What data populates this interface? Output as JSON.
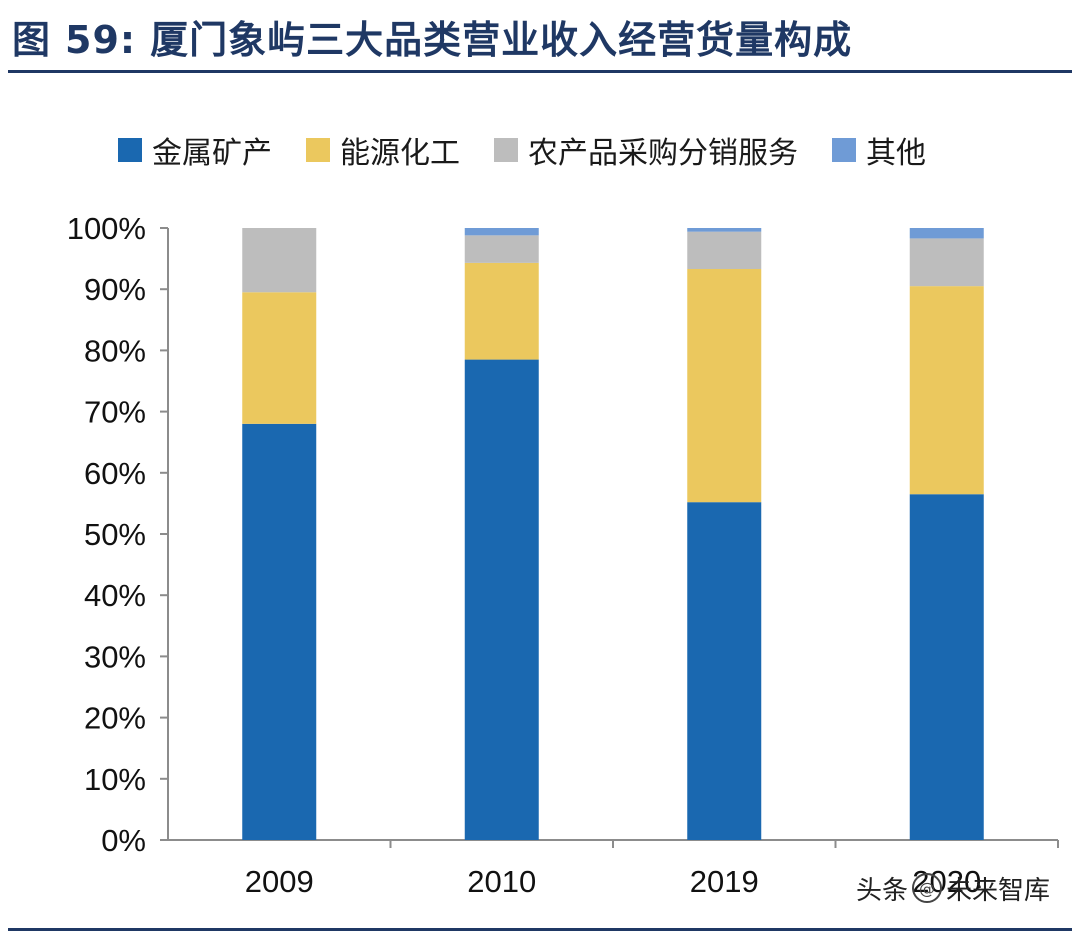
{
  "header": {
    "figure_label": "图",
    "figure_number": "59:",
    "title_text": "厦门象屿三大品类营业收入经营货量构成"
  },
  "watermark": {
    "prefix": "头条",
    "icon": "at-icon",
    "name": "未来智库"
  },
  "colors": {
    "title": "#1f3864",
    "axis": "#8c8c8c"
  },
  "chart_data": {
    "type": "bar",
    "stacked": true,
    "title": "厦门象屿三大品类营业收入经营货量构成",
    "xlabel": "",
    "ylabel": "",
    "ylim": [
      0,
      100
    ],
    "y_unit": "%",
    "y_ticks": [
      0,
      10,
      20,
      30,
      40,
      50,
      60,
      70,
      80,
      90,
      100
    ],
    "y_tick_labels": [
      "0%",
      "10%",
      "20%",
      "30%",
      "40%",
      "50%",
      "60%",
      "70%",
      "80%",
      "90%",
      "100%"
    ],
    "legend_position": "top",
    "categories": [
      "2009",
      "2010",
      "2019",
      "2020"
    ],
    "series": [
      {
        "name": "金属矿产",
        "color": "#1a68b0",
        "values": [
          68,
          78.5,
          55.2,
          56.5
        ]
      },
      {
        "name": "能源化工",
        "color": "#ebc85e",
        "values": [
          21.5,
          15.8,
          38.1,
          34.0
        ]
      },
      {
        "name": "农产品采购分销服务",
        "color": "#bdbdbd",
        "values": [
          10.5,
          4.5,
          6.1,
          7.8
        ]
      },
      {
        "name": "其他",
        "color": "#6f9bd6",
        "values": [
          0,
          1.2,
          0.6,
          1.7
        ]
      }
    ]
  }
}
